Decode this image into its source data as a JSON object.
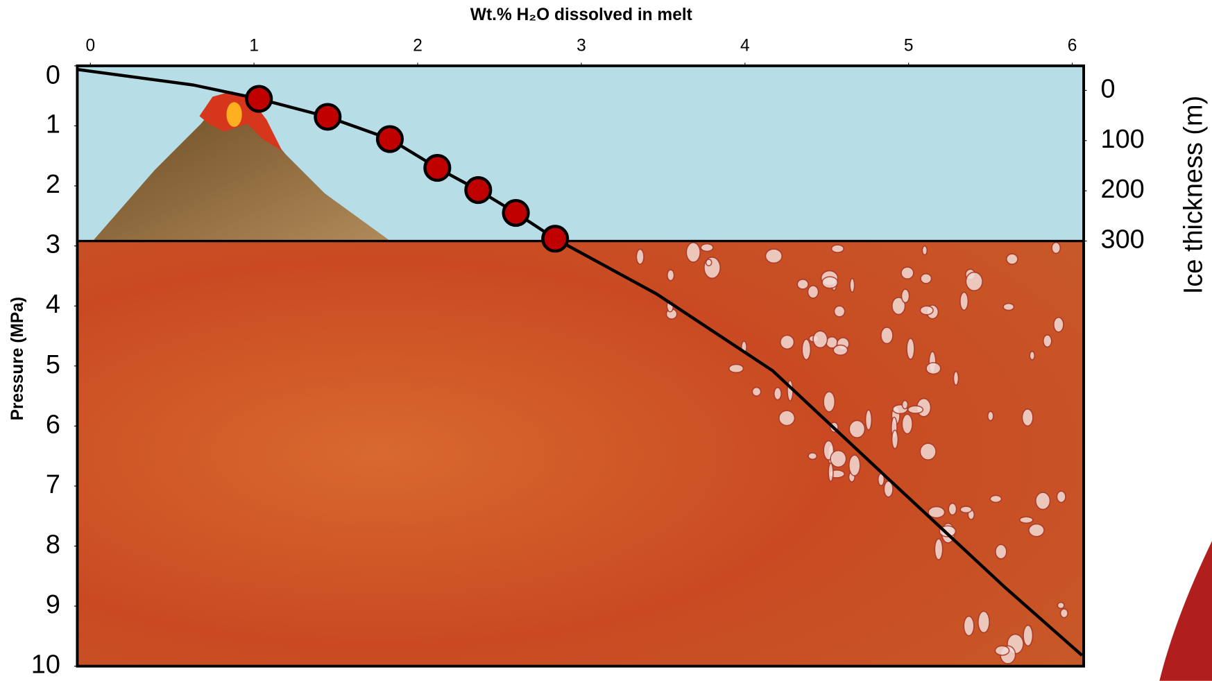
{
  "chart_data": {
    "type": "line",
    "title": "Wt.% H₂O dissolved in melt",
    "y_label": "Pressure (MPa)",
    "y2_label": "Ice thickness (m)",
    "xlim": [
      -0.08,
      6.07
    ],
    "xticks": [
      0,
      1,
      2,
      3,
      4,
      5,
      6
    ],
    "ylim": [
      0,
      10
    ],
    "yticks": [
      0,
      1,
      2,
      3,
      4,
      5,
      6,
      7,
      8,
      9,
      10
    ],
    "y2lim": [
      -49,
      1147
    ],
    "y2ticks": [
      0,
      100,
      200,
      300
    ],
    "curve": {
      "color": "#000000",
      "x": [
        -0.08,
        0.63,
        1.03,
        1.45,
        1.83,
        2.12,
        2.37,
        2.6,
        2.84,
        3.46,
        4.17,
        4.88,
        5.59,
        6.06
      ],
      "y": [
        0.06,
        0.32,
        0.55,
        0.85,
        1.22,
        1.7,
        2.07,
        2.45,
        2.88,
        3.8,
        5.08,
        6.89,
        8.69,
        9.82
      ]
    },
    "points": {
      "color": "#c00000",
      "x": [
        1.03,
        1.45,
        1.83,
        2.12,
        2.37,
        2.6,
        2.84
      ],
      "y": [
        0.55,
        0.85,
        1.22,
        1.7,
        2.07,
        2.45,
        2.88
      ]
    }
  }
}
